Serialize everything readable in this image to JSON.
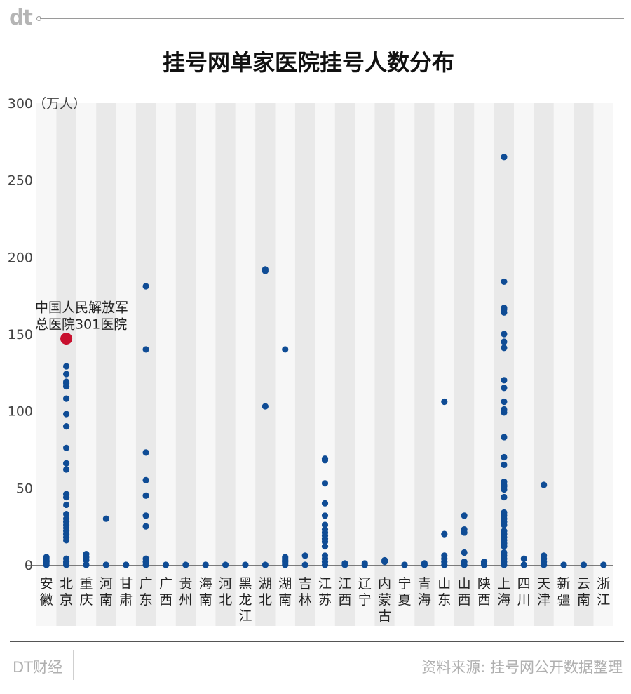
{
  "brand_logo": "dt",
  "title": "挂号网单家医院挂号人数分布",
  "footer": {
    "brand": "DT财经",
    "source": "资料来源: 挂号网公开数据整理"
  },
  "colors": {
    "dot": "#0f4c95",
    "highlight": "#c8102e",
    "band_light": "#f7f7f7",
    "band_dark": "#e9e9e9"
  },
  "chart_data": {
    "type": "scatter",
    "title": "挂号网单家医院挂号人数分布",
    "ylabel": "（万人）",
    "ylim": [
      0,
      300
    ],
    "yticks": [
      0,
      50,
      100,
      150,
      200,
      250,
      300
    ],
    "ytick_labels": [
      "0",
      "50",
      "100",
      "150",
      "200",
      "250",
      "300"
    ],
    "categories": [
      "安徽",
      "北京",
      "重庆",
      "河南",
      "甘肃",
      "广东",
      "广西",
      "贵州",
      "海南",
      "河北",
      "黑龙江",
      "湖北",
      "湖南",
      "吉林",
      "江苏",
      "江西",
      "辽宁",
      "内蒙古",
      "宁夏",
      "青海",
      "山东",
      "山西",
      "陕西",
      "上海",
      "四川",
      "天津",
      "新疆",
      "云南",
      "浙江"
    ],
    "values": [
      [
        0,
        1,
        2,
        3,
        4,
        5
      ],
      [
        0,
        1,
        2,
        4,
        16,
        18,
        20,
        22,
        24,
        26,
        28,
        30,
        33,
        39,
        44,
        46,
        62,
        66,
        76,
        90,
        98,
        108,
        116,
        118,
        119,
        124,
        129
      ],
      [
        0,
        3,
        5,
        7
      ],
      [
        0,
        30
      ],
      [
        0
      ],
      [
        0,
        2,
        4,
        25,
        32,
        45,
        55,
        73,
        140,
        181
      ],
      [
        0
      ],
      [
        0
      ],
      [
        0
      ],
      [
        0
      ],
      [
        0
      ],
      [
        0,
        103,
        191,
        192
      ],
      [
        0,
        1,
        2,
        3,
        4,
        5,
        140
      ],
      [
        0,
        6
      ],
      [
        0,
        2,
        4,
        6,
        12,
        15,
        17,
        19,
        21,
        23,
        26,
        32,
        40,
        53,
        68,
        69
      ],
      [
        0,
        1
      ],
      [
        0,
        1
      ],
      [
        2,
        3
      ],
      [
        0
      ],
      [
        0,
        1
      ],
      [
        0,
        2,
        4,
        6,
        20,
        106
      ],
      [
        0,
        2,
        8,
        21,
        23,
        32
      ],
      [
        0,
        1,
        2
      ],
      [
        0,
        2,
        4,
        6,
        8,
        12,
        14,
        16,
        18,
        20,
        22,
        26,
        28,
        30,
        32,
        34,
        44,
        49,
        51,
        52,
        54,
        65,
        70,
        83,
        99,
        101,
        106,
        115,
        120,
        141,
        145,
        150,
        164,
        166,
        167,
        184,
        265
      ],
      [
        0,
        4
      ],
      [
        0,
        2,
        4,
        6,
        52
      ],
      [
        0
      ],
      [
        0
      ],
      [
        0
      ]
    ],
    "highlight": {
      "category": "北京",
      "value": 147,
      "label_lines": [
        "中国人民解放军",
        "总医院301医院"
      ]
    },
    "grid": false
  }
}
